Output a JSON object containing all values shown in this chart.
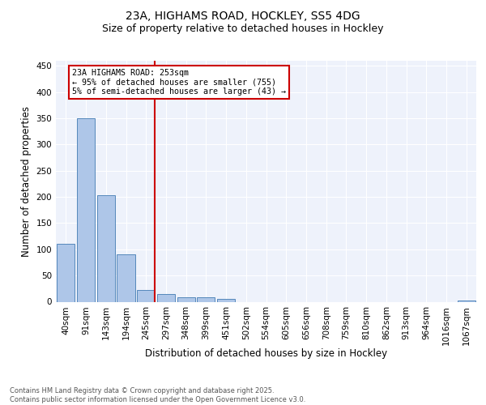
{
  "title1": "23A, HIGHAMS ROAD, HOCKLEY, SS5 4DG",
  "title2": "Size of property relative to detached houses in Hockley",
  "xlabel": "Distribution of detached houses by size in Hockley",
  "ylabel": "Number of detached properties",
  "bar_labels": [
    "40sqm",
    "91sqm",
    "143sqm",
    "194sqm",
    "245sqm",
    "297sqm",
    "348sqm",
    "399sqm",
    "451sqm",
    "502sqm",
    "554sqm",
    "605sqm",
    "656sqm",
    "708sqm",
    "759sqm",
    "810sqm",
    "862sqm",
    "913sqm",
    "964sqm",
    "1016sqm",
    "1067sqm"
  ],
  "bar_values": [
    110,
    350,
    204,
    90,
    22,
    14,
    9,
    8,
    6,
    0,
    0,
    0,
    0,
    0,
    0,
    0,
    0,
    0,
    0,
    0,
    3
  ],
  "bar_color": "#aec6e8",
  "bar_edge_color": "#5588bb",
  "vline_color": "#cc0000",
  "annotation_text": "23A HIGHAMS ROAD: 253sqm\n← 95% of detached houses are smaller (755)\n5% of semi-detached houses are larger (43) →",
  "annotation_box_color": "#cc0000",
  "ylim": [
    0,
    460
  ],
  "yticks": [
    0,
    50,
    100,
    150,
    200,
    250,
    300,
    350,
    400,
    450
  ],
  "bg_color": "#eef2fb",
  "footer_text": "Contains HM Land Registry data © Crown copyright and database right 2025.\nContains public sector information licensed under the Open Government Licence v3.0.",
  "grid_color": "#ffffff",
  "title_fontsize": 10,
  "subtitle_fontsize": 9,
  "axis_label_fontsize": 8.5,
  "tick_fontsize": 7.5,
  "footer_fontsize": 6.0
}
